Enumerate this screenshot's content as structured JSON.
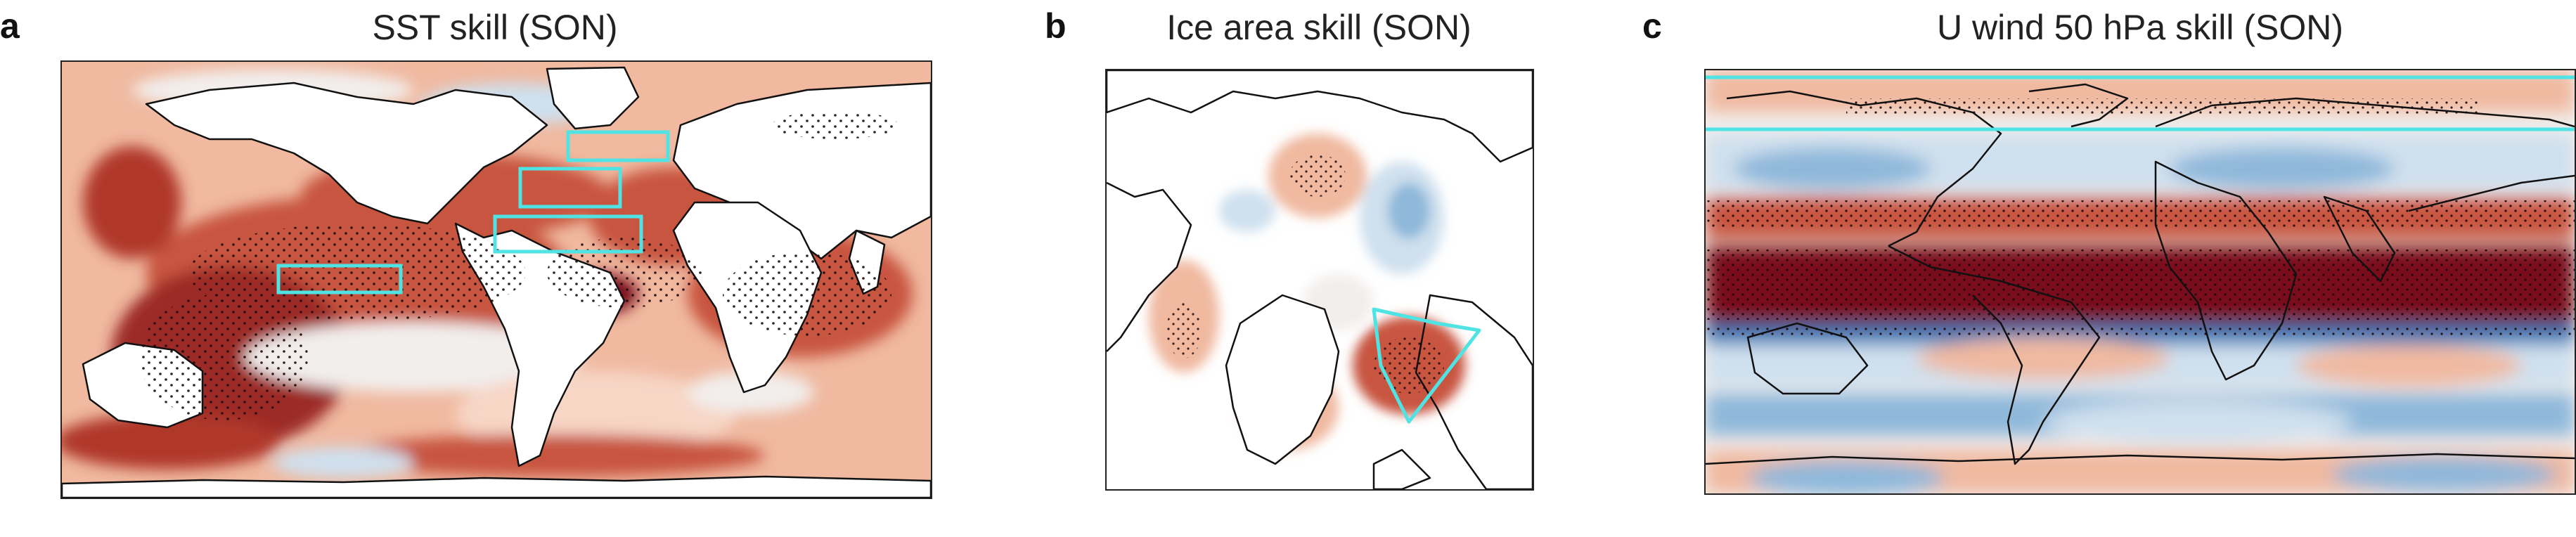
{
  "figure": {
    "panels": [
      {
        "letter": "a",
        "title": "SST skill (SON)"
      },
      {
        "letter": "b",
        "title": "Ice area skill (SON)"
      },
      {
        "letter": "c",
        "title": "U wind 50 hPa skill (SON)"
      }
    ],
    "colors": {
      "positive_strong": "#7a0e1a",
      "positive_mid": "#c8553f",
      "positive_weak": "#f0b9a0",
      "neutral": "#f2eeec",
      "negative_weak": "#cfe0ee",
      "negative_mid": "#8fb8da",
      "negative_strong": "#3b78b5",
      "region_box": "#4fe3e3",
      "coastline": "#111111",
      "stipple": "#1a0608"
    }
  }
}
